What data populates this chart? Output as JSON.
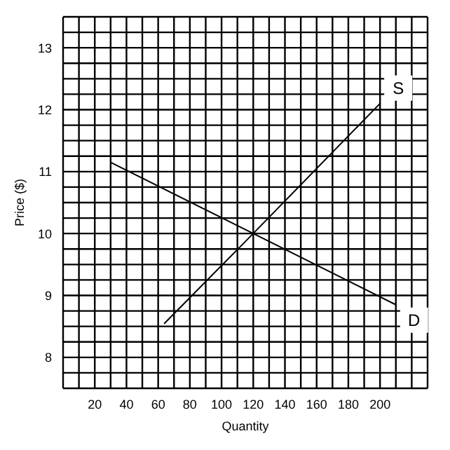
{
  "chart_data": {
    "type": "line",
    "xlabel": "Quantity",
    "ylabel": "Price ($)",
    "xlim": [
      0,
      230
    ],
    "xticks": [
      20,
      40,
      60,
      80,
      100,
      120,
      140,
      160,
      180,
      200
    ],
    "ylim": [
      7.5,
      13.5
    ],
    "yticks": [
      8,
      9,
      10,
      11,
      12,
      13
    ],
    "grid": true,
    "marker": "none",
    "line_style": "solid",
    "series": [
      {
        "name": "S",
        "color": "#000000",
        "x": [
          64,
          120,
          200
        ],
        "values": [
          8.55,
          10,
          12.1
        ]
      },
      {
        "name": "D",
        "color": "#000000",
        "x": [
          30,
          120,
          210
        ],
        "values": [
          11.15,
          10,
          8.85
        ]
      }
    ]
  }
}
